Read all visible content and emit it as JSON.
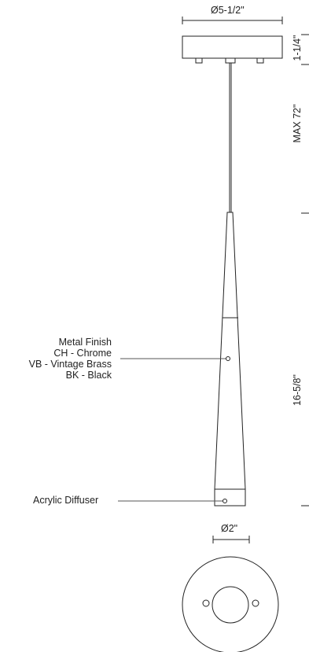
{
  "dimensions": {
    "canopy_diameter": "Ø5-1/2\"",
    "canopy_height": "1-1/4\"",
    "cable_length": "MAX 72\"",
    "fixture_length": "16-5/8\"",
    "fixture_diameter": "Ø2\""
  },
  "callouts": {
    "metal_finish": {
      "title": "Metal Finish",
      "options": [
        "CH - Chrome",
        "VB - Vintage Brass",
        "BK - Black"
      ]
    },
    "diffuser": "Acrylic Diffuser"
  },
  "colors": {
    "line": "#222222",
    "leader": "#555555"
  }
}
